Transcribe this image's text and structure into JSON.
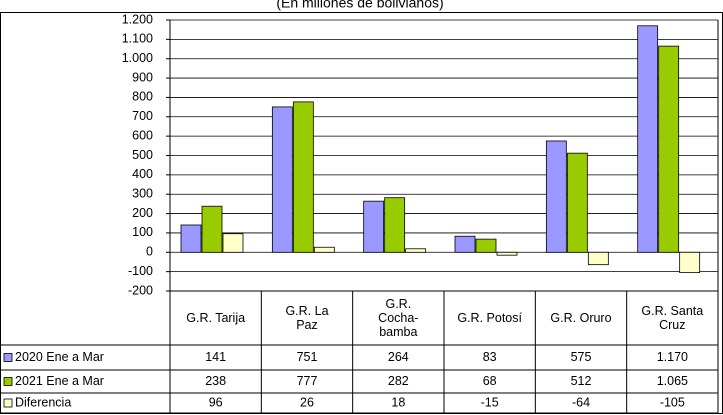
{
  "chart_data": {
    "type": "bar",
    "subtitle": "(En millones de bolivianos)",
    "categories": [
      "G.R. Tarija",
      "G.R. La Paz",
      "G.R. Cocha-bamba",
      "G.R. Potosí",
      "G.R. Oruro",
      "G.R. Santa Cruz"
    ],
    "series": [
      {
        "name": "2020 Ene a Mar",
        "color": "#9999ff",
        "values": [
          141,
          751,
          264,
          83,
          575,
          1170
        ],
        "value_labels": [
          "141",
          "751",
          "264",
          "83",
          "575",
          "1.170"
        ]
      },
      {
        "name": "2021 Ene a Mar",
        "color": "#99cc00",
        "values": [
          238,
          777,
          282,
          68,
          512,
          1065
        ],
        "value_labels": [
          "238",
          "777",
          "282",
          "68",
          "512",
          "1.065"
        ]
      },
      {
        "name": "Diferencia",
        "color": "#ffffcc",
        "values": [
          96,
          26,
          18,
          -15,
          -64,
          -105
        ]
      }
    ],
    "ylim": [
      -200,
      1200
    ],
    "yticks": [
      -200,
      -100,
      0,
      100,
      200,
      300,
      400,
      500,
      600,
      700,
      800,
      900,
      {
        "value": 1000,
        "label": "1.000"
      },
      {
        "value": 1100,
        "label": "1.100"
      },
      {
        "value": 1200,
        "label": "1.200"
      }
    ],
    "grid": true,
    "legend": "table"
  }
}
